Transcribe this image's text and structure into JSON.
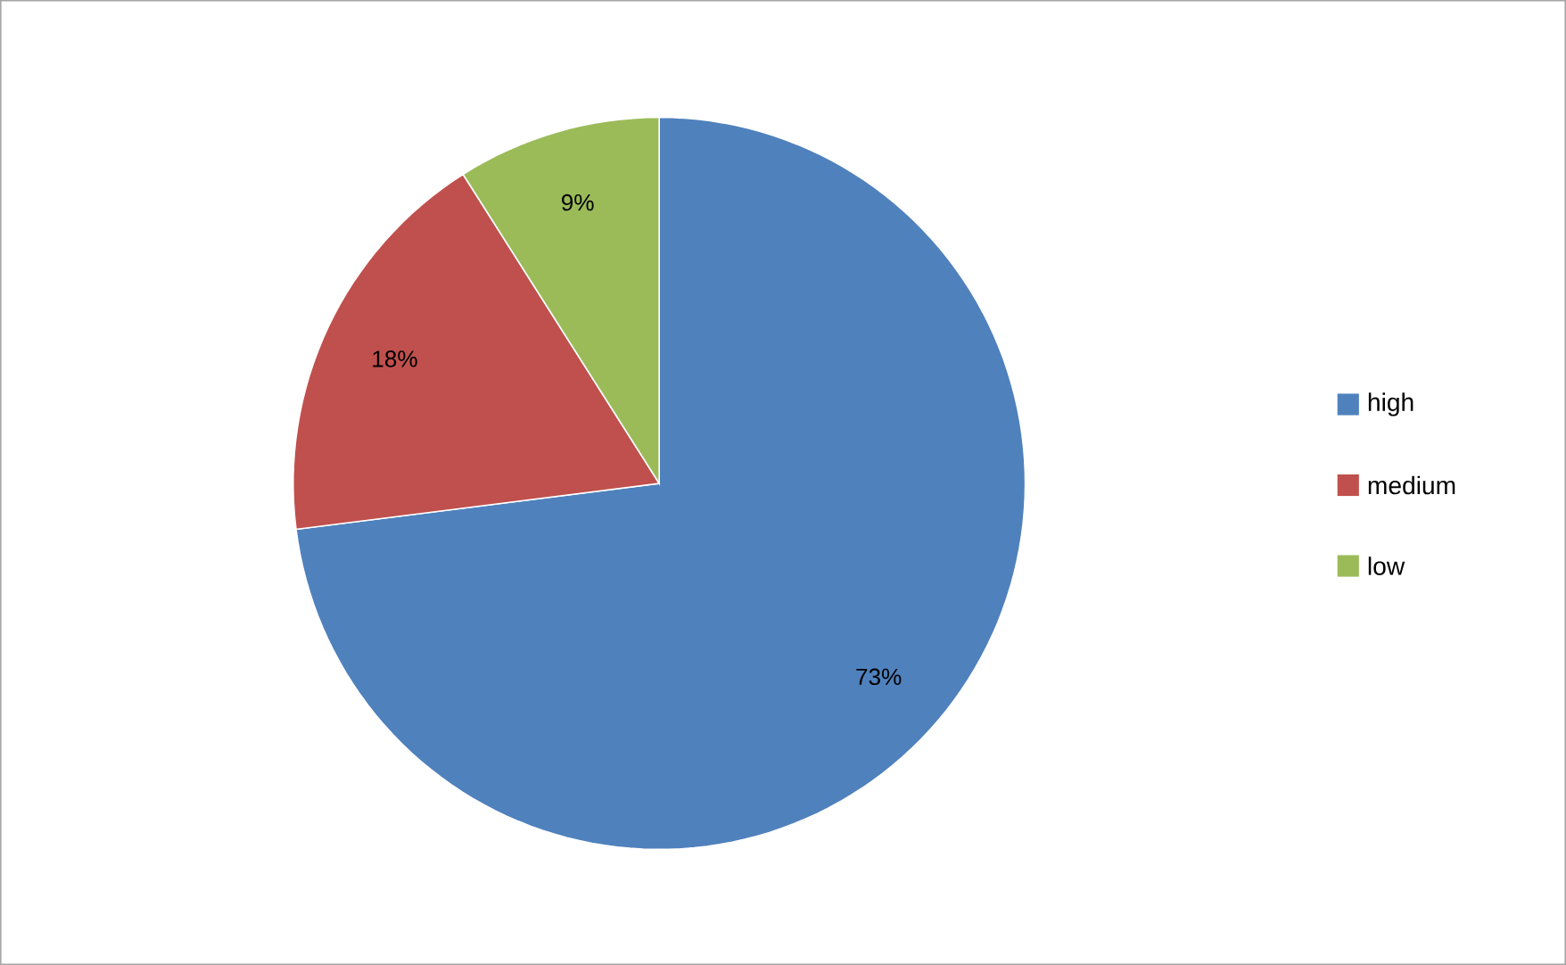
{
  "chart_data": {
    "type": "pie",
    "categories": [
      "high",
      "medium",
      "low"
    ],
    "values": [
      73,
      18,
      9
    ],
    "colors": [
      "#4f81bd",
      "#c0504d",
      "#9bbb59"
    ],
    "value_labels": [
      "73%",
      "18%",
      "9%"
    ],
    "legend": "right"
  }
}
